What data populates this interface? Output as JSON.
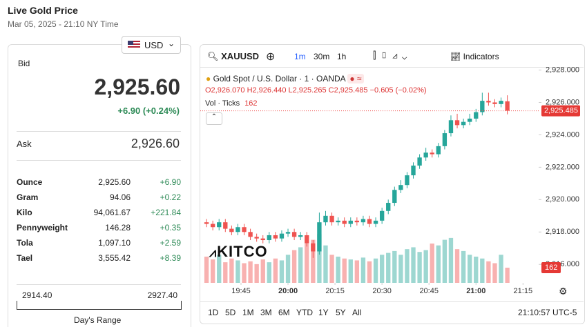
{
  "header": {
    "title": "Live Gold Price",
    "subtitle": "Mar 05, 2025 - 21:10 NY Time"
  },
  "currency": "USD",
  "bid": {
    "label": "Bid",
    "value": "2,925.60",
    "change": "+6.90 (+0.24%)"
  },
  "ask": {
    "label": "Ask",
    "value": "2,926.60"
  },
  "table": {
    "rows": [
      [
        "Ounce",
        "2,925.60",
        "+6.90"
      ],
      [
        "Gram",
        "94.06",
        "+0.22"
      ],
      [
        "Kilo",
        "94,061.67",
        "+221.84"
      ],
      [
        "Pennyweight",
        "146.28",
        "+0.35"
      ],
      [
        "Tola",
        "1,097.10",
        "+2.59"
      ],
      [
        "Tael",
        "3,555.42",
        "+8.39"
      ]
    ]
  },
  "range": {
    "low": "2914.40",
    "high": "2927.40",
    "label": "Day's Range"
  },
  "toolbar": {
    "symbol": "XAUUSD",
    "intervals": [
      "1m",
      "30m",
      "1h"
    ],
    "indicators": "Indicators"
  },
  "legend": {
    "title": "Gold Spot / U.S. Dollar · 1 · OANDA",
    "open": "O2,926.070",
    "high": "H2,926.440",
    "low": "L2,925.265",
    "close": "C2,925.485",
    "change": "−0.605 (−0.02%)",
    "volume_label": "Vol · Ticks",
    "volume_value": "162"
  },
  "watermark": "KITCO",
  "ranges": [
    "1D",
    "5D",
    "1M",
    "3M",
    "6M",
    "YTD",
    "1Y",
    "5Y",
    "All"
  ],
  "clock": "21:10:57 UTC-5",
  "chart_data": {
    "type": "candlestick",
    "up_color": "#26a69a",
    "down_color": "#ef5350",
    "x": [
      1174,
      1176,
      1178,
      1180,
      1182,
      1184,
      1186,
      1188,
      1190,
      1192,
      1194,
      1196,
      1198,
      1200,
      1202,
      1204,
      1206,
      1208,
      1210,
      1212,
      1214,
      1216,
      1218,
      1220,
      1222,
      1224,
      1226,
      1228,
      1230,
      1232,
      1234,
      1236,
      1238,
      1240,
      1242,
      1244,
      1246,
      1248,
      1250,
      1252,
      1254,
      1256,
      1258,
      1260,
      1262,
      1264,
      1266,
      1268,
      1270
    ],
    "open": [
      2918.6,
      2918.5,
      2918.3,
      2918.6,
      2918.2,
      2918.0,
      2918.3,
      2918.0,
      2917.7,
      2917.6,
      2917.5,
      2917.8,
      2917.6,
      2917.9,
      2918.0,
      2917.7,
      2917.8,
      2917.3,
      2916.8,
      2918.6,
      2919.0,
      2918.6,
      2918.7,
      2918.5,
      2918.7,
      2918.6,
      2918.8,
      2918.5,
      2918.7,
      2919.3,
      2919.8,
      2920.6,
      2920.9,
      2921.5,
      2922.1,
      2922.6,
      2922.9,
      2922.8,
      2923.3,
      2924.1,
      2924.9,
      2924.6,
      2924.8,
      2925.0,
      2925.4,
      2926.1,
      2926.0,
      2925.9,
      2926.07
    ],
    "high": [
      2918.8,
      2918.7,
      2918.8,
      2918.8,
      2918.4,
      2918.5,
      2918.5,
      2918.2,
      2917.9,
      2917.8,
      2918.0,
      2918.0,
      2918.1,
      2918.2,
      2918.2,
      2918.0,
      2918.0,
      2917.5,
      2919.2,
      2919.3,
      2919.2,
      2918.9,
      2918.9,
      2918.9,
      2918.9,
      2919.0,
      2919.0,
      2918.9,
      2919.5,
      2920.0,
      2920.8,
      2921.2,
      2921.7,
      2922.3,
      2922.8,
      2923.2,
      2923.1,
      2923.5,
      2924.3,
      2925.2,
      2925.3,
      2925.0,
      2925.3,
      2925.6,
      2926.6,
      2926.6,
      2926.2,
      2926.3,
      2926.44
    ],
    "low": [
      2918.3,
      2918.1,
      2918.1,
      2918.0,
      2917.8,
      2917.8,
      2917.8,
      2917.5,
      2917.4,
      2917.3,
      2917.3,
      2917.4,
      2917.4,
      2917.7,
      2917.5,
      2917.5,
      2917.1,
      2916.4,
      2916.6,
      2918.4,
      2918.4,
      2918.4,
      2918.3,
      2918.3,
      2918.4,
      2918.4,
      2918.3,
      2918.3,
      2918.5,
      2919.1,
      2919.6,
      2920.4,
      2920.7,
      2921.3,
      2921.9,
      2922.4,
      2922.6,
      2922.6,
      2923.1,
      2923.9,
      2924.4,
      2924.4,
      2924.6,
      2924.8,
      2925.2,
      2925.8,
      2925.7,
      2925.7,
      2925.265
    ],
    "close": [
      2918.5,
      2918.3,
      2918.6,
      2918.2,
      2918.0,
      2918.3,
      2918.0,
      2917.7,
      2917.6,
      2917.5,
      2917.8,
      2917.6,
      2917.9,
      2918.0,
      2917.7,
      2917.8,
      2917.3,
      2916.8,
      2918.6,
      2919.0,
      2918.6,
      2918.7,
      2918.5,
      2918.7,
      2918.6,
      2918.8,
      2918.5,
      2918.7,
      2919.3,
      2919.8,
      2920.6,
      2920.9,
      2921.5,
      2922.1,
      2922.6,
      2922.9,
      2922.8,
      2923.3,
      2924.1,
      2924.9,
      2924.6,
      2924.8,
      2925.0,
      2925.4,
      2926.1,
      2926.0,
      2925.9,
      2926.1,
      2925.485
    ],
    "volume": [
      280,
      250,
      300,
      220,
      260,
      240,
      210,
      230,
      200,
      250,
      220,
      260,
      240,
      300,
      350,
      380,
      420,
      460,
      520,
      400,
      300,
      280,
      260,
      250,
      240,
      270,
      230,
      260,
      300,
      320,
      340,
      300,
      360,
      380,
      330,
      350,
      420,
      400,
      460,
      480,
      360,
      340,
      300,
      280,
      260,
      230,
      210,
      300,
      162
    ],
    "xlim": [
      1172,
      1280
    ],
    "ylim": [
      2914.86,
      2928.15
    ],
    "volume_lim": [
      0,
      2300
    ],
    "xticks": [
      {
        "value": 1185,
        "label": "19:45"
      },
      {
        "value": 1200,
        "label": "20:00"
      },
      {
        "value": 1215,
        "label": "20:15"
      },
      {
        "value": 1230,
        "label": "20:30"
      },
      {
        "value": 1245,
        "label": "20:45"
      },
      {
        "value": 1260,
        "label": "21:00"
      },
      {
        "value": 1275,
        "label": "21:15"
      }
    ],
    "yticks": [
      {
        "value": 2916,
        "label": "2,916.000"
      },
      {
        "value": 2918,
        "label": "2,918.000"
      },
      {
        "value": 2920,
        "label": "2,920.000"
      },
      {
        "value": 2922,
        "label": "2,922.000"
      },
      {
        "value": 2924,
        "label": "2,924.000"
      },
      {
        "value": 2926,
        "label": "2,926.000"
      },
      {
        "value": 2928,
        "label": "2,928.000"
      }
    ],
    "last_price": {
      "value": 2925.485,
      "label": "2,925.485"
    },
    "grid": false
  }
}
